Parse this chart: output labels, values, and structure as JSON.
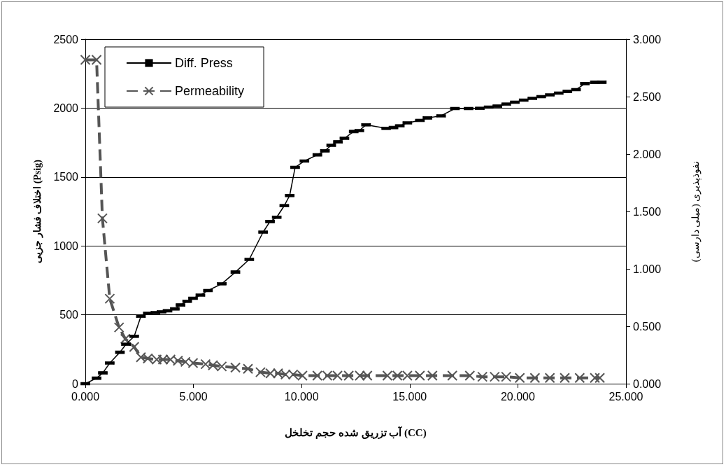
{
  "chart_data": {
    "type": "line",
    "xlabel": "آب تزریق شده حجم تخلخل (CC)",
    "ylabel": "اختلاف فشار جزیی (Psig)",
    "y2label": "نفوذپذیری (میلی دارسی)",
    "xlim": [
      0,
      25
    ],
    "xticks": [
      {
        "value": 0,
        "label": "0.000"
      },
      {
        "value": 5,
        "label": "5.000"
      },
      {
        "value": 10,
        "label": "10.000"
      },
      {
        "value": 15,
        "label": "15.000"
      },
      {
        "value": 20,
        "label": "20.000"
      },
      {
        "value": 25,
        "label": "25.000"
      }
    ],
    "ylim": [
      0,
      2500
    ],
    "yticks": [
      0,
      500,
      1000,
      1500,
      2000,
      2500
    ],
    "y2lim": [
      0,
      3
    ],
    "y2ticks": [
      {
        "value": 0,
        "label": "0.000"
      },
      {
        "value": 0.5,
        "label": "0.500"
      },
      {
        "value": 1,
        "label": "1.000"
      },
      {
        "value": 1.5,
        "label": "1.500"
      },
      {
        "value": 2,
        "label": "2.000"
      },
      {
        "value": 2.5,
        "label": "2.500"
      },
      {
        "value": 3,
        "label": "3.000"
      }
    ],
    "grid": "y",
    "legend": "top left",
    "series": [
      {
        "name": "Diff. Press",
        "color": "#000000",
        "marker": "square",
        "line_style": "solid",
        "x": [
          0,
          0.52,
          0.81,
          1.13,
          1.6,
          1.88,
          2.26,
          2.57,
          2.89,
          3.24,
          3.53,
          3.8,
          4.14,
          4.4,
          4.71,
          4.98,
          5.32,
          5.67,
          6.31,
          6.94,
          7.58,
          8.22,
          8.54,
          8.85,
          9.2,
          9.45,
          9.7,
          10.13,
          10.73,
          11.08,
          11.37,
          11.68,
          11.98,
          12.41,
          12.67,
          12.98,
          13.91,
          14.25,
          14.54,
          14.89,
          15.47,
          15.82,
          16.45,
          17.09,
          17.72,
          18.24,
          18.65,
          19.05,
          19.46,
          19.86,
          20.27,
          20.67,
          21.08,
          21.48,
          21.89,
          22.29,
          22.69,
          23.1,
          23.56,
          23.88
        ],
        "values": [
          0,
          40,
          78,
          150,
          228,
          286,
          344,
          489,
          511,
          516,
          522,
          529,
          543,
          571,
          598,
          620,
          643,
          676,
          725,
          810,
          902,
          1100,
          1177,
          1208,
          1292,
          1366,
          1570,
          1616,
          1661,
          1690,
          1730,
          1755,
          1781,
          1830,
          1837,
          1879,
          1853,
          1859,
          1871,
          1893,
          1911,
          1929,
          1944,
          1997,
          1997,
          1998,
          2007,
          2014,
          2029,
          2043,
          2058,
          2071,
          2083,
          2096,
          2109,
          2121,
          2134,
          2178,
          2187,
          2188
        ]
      },
      {
        "name": "Permeability",
        "color": "#555555",
        "marker": "cross",
        "line_style": "dashed",
        "axis": "y2",
        "x": [
          0,
          0.52,
          0.79,
          1.13,
          1.56,
          1.85,
          2.26,
          2.57,
          2.89,
          3.3,
          3.59,
          3.94,
          4.28,
          4.63,
          4.98,
          5.56,
          5.9,
          6.31,
          6.94,
          7.52,
          8.1,
          8.56,
          8.91,
          9.26,
          9.61,
          10.04,
          10.73,
          11.19,
          11.66,
          12.18,
          12.69,
          13.04,
          13.97,
          14.43,
          14.89,
          15.47,
          16.05,
          16.97,
          17.78,
          18.36,
          18.93,
          19.46,
          20.09,
          20.79,
          21.48,
          22.17,
          22.86,
          23.56,
          23.79
        ],
        "values": [
          2.82,
          2.82,
          1.44,
          0.74,
          0.49,
          0.39,
          0.32,
          0.23,
          0.22,
          0.21,
          0.21,
          0.21,
          0.2,
          0.19,
          0.18,
          0.17,
          0.16,
          0.15,
          0.14,
          0.13,
          0.1,
          0.09,
          0.09,
          0.08,
          0.08,
          0.07,
          0.07,
          0.07,
          0.07,
          0.07,
          0.07,
          0.07,
          0.07,
          0.07,
          0.07,
          0.07,
          0.07,
          0.07,
          0.07,
          0.06,
          0.06,
          0.06,
          0.05,
          0.05,
          0.05,
          0.05,
          0.05,
          0.05,
          0.05
        ]
      }
    ]
  }
}
